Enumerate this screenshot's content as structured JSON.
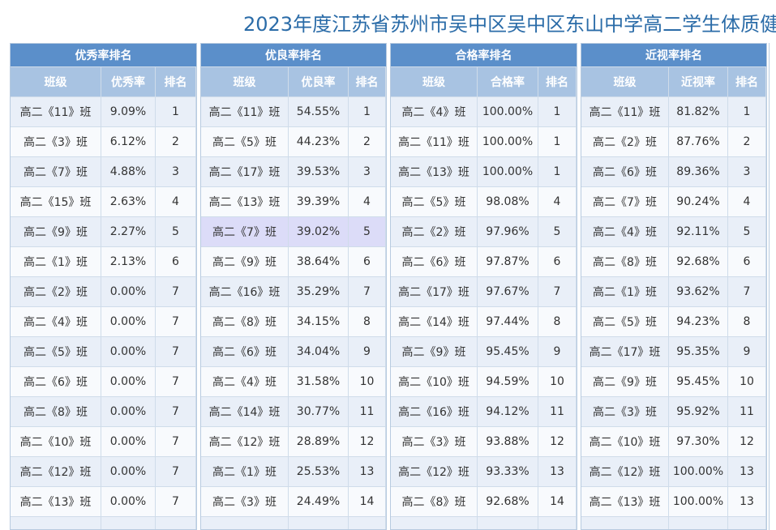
{
  "header": {
    "title": "2023年度江苏省苏州市吴中区吴中区东山中学高二学生体质健"
  },
  "tables": [
    {
      "title": "优秀率排名",
      "headers": [
        "班级",
        "优秀率",
        "排名"
      ],
      "rows": [
        [
          "高二《11》班",
          "9.09%",
          1
        ],
        [
          "高二《3》班",
          "6.12%",
          2
        ],
        [
          "高二《7》班",
          "4.88%",
          3
        ],
        [
          "高二《15》班",
          "2.63%",
          4
        ],
        [
          "高二《9》班",
          "2.27%",
          5
        ],
        [
          "高二《1》班",
          "2.13%",
          6
        ],
        [
          "高二《2》班",
          "0.00%",
          7
        ],
        [
          "高二《4》班",
          "0.00%",
          7
        ],
        [
          "高二《5》班",
          "0.00%",
          7
        ],
        [
          "高二《6》班",
          "0.00%",
          7
        ],
        [
          "高二《8》班",
          "0.00%",
          7
        ],
        [
          "高二《10》班",
          "0.00%",
          7
        ],
        [
          "高二《12》班",
          "0.00%",
          7
        ],
        [
          "高二《13》班",
          "0.00%",
          7
        ]
      ]
    },
    {
      "title": "优良率排名",
      "headers": [
        "班级",
        "优良率",
        "排名"
      ],
      "rows": [
        [
          "高二《11》班",
          "54.55%",
          1
        ],
        [
          "高二《5》班",
          "44.23%",
          2
        ],
        [
          "高二《17》班",
          "39.53%",
          3
        ],
        [
          "高二《13》班",
          "39.39%",
          4
        ],
        [
          "高二《7》班",
          "39.02%",
          5
        ],
        [
          "高二《9》班",
          "38.64%",
          6
        ],
        [
          "高二《16》班",
          "35.29%",
          7
        ],
        [
          "高二《8》班",
          "34.15%",
          8
        ],
        [
          "高二《6》班",
          "34.04%",
          9
        ],
        [
          "高二《4》班",
          "31.58%",
          10
        ],
        [
          "高二《14》班",
          "30.77%",
          11
        ],
        [
          "高二《12》班",
          "28.89%",
          12
        ],
        [
          "高二《1》班",
          "25.53%",
          13
        ],
        [
          "高二《3》班",
          "24.49%",
          14
        ]
      ]
    },
    {
      "title": "合格率排名",
      "headers": [
        "班级",
        "合格率",
        "排名"
      ],
      "rows": [
        [
          "高二《4》班",
          "100.00%",
          1
        ],
        [
          "高二《11》班",
          "100.00%",
          1
        ],
        [
          "高二《13》班",
          "100.00%",
          1
        ],
        [
          "高二《5》班",
          "98.08%",
          4
        ],
        [
          "高二《2》班",
          "97.96%",
          5
        ],
        [
          "高二《6》班",
          "97.87%",
          6
        ],
        [
          "高二《17》班",
          "97.67%",
          7
        ],
        [
          "高二《14》班",
          "97.44%",
          8
        ],
        [
          "高二《9》班",
          "95.45%",
          9
        ],
        [
          "高二《10》班",
          "94.59%",
          10
        ],
        [
          "高二《16》班",
          "94.12%",
          11
        ],
        [
          "高二《3》班",
          "93.88%",
          12
        ],
        [
          "高二《12》班",
          "93.33%",
          13
        ],
        [
          "高二《8》班",
          "92.68%",
          14
        ]
      ]
    },
    {
      "title": "近视率排名",
      "headers": [
        "班级",
        "近视率",
        "排名"
      ],
      "rows": [
        [
          "高二《11》班",
          "81.82%",
          1
        ],
        [
          "高二《2》班",
          "87.76%",
          2
        ],
        [
          "高二《6》班",
          "89.36%",
          3
        ],
        [
          "高二《7》班",
          "90.24%",
          4
        ],
        [
          "高二《4》班",
          "92.11%",
          5
        ],
        [
          "高二《8》班",
          "92.68%",
          6
        ],
        [
          "高二《1》班",
          "93.62%",
          7
        ],
        [
          "高二《5》班",
          "94.23%",
          8
        ],
        [
          "高二《17》班",
          "95.35%",
          9
        ],
        [
          "高二《9》班",
          "95.45%",
          10
        ],
        [
          "高二《3》班",
          "95.92%",
          11
        ],
        [
          "高二《10》班",
          "97.30%",
          12
        ],
        [
          "高二《12》班",
          "100.00%",
          13
        ],
        [
          "高二《13》班",
          "100.00%",
          13
        ]
      ]
    }
  ]
}
